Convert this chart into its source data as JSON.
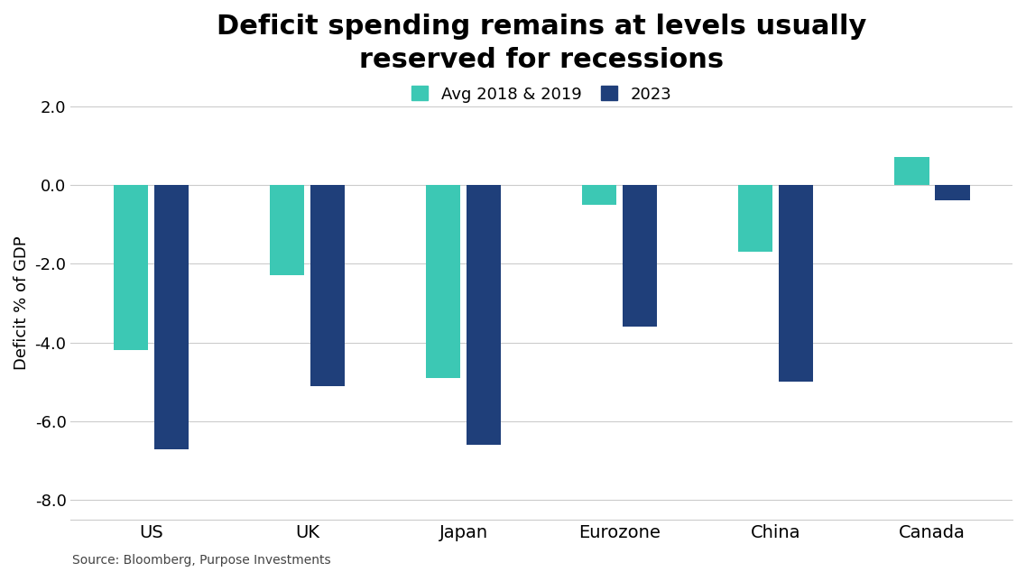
{
  "title": "Deficit spending remains at levels usually\nreserved for recessions",
  "categories": [
    "US",
    "UK",
    "Japan",
    "Eurozone",
    "China",
    "Canada"
  ],
  "avg_2018_2019": [
    -4.2,
    -2.3,
    -4.9,
    -0.5,
    -1.7,
    0.7
  ],
  "year_2023": [
    -6.7,
    -5.1,
    -6.6,
    -3.6,
    -5.0,
    -0.4
  ],
  "color_avg": "#3CC8B4",
  "color_2023": "#1F3F7A",
  "ylabel": "Deficit % of GDP",
  "ylim": [
    -8.5,
    2.5
  ],
  "yticks": [
    2.0,
    0.0,
    -2.0,
    -4.0,
    -6.0,
    -8.0
  ],
  "ytick_labels": [
    "2.0",
    "0.0",
    "-2.0",
    "-4.0",
    "-6.0",
    "-8.0"
  ],
  "legend_labels": [
    "Avg 2018 & 2019",
    "2023"
  ],
  "source_text": "Source: Bloomberg, Purpose Investments",
  "bar_width": 0.22,
  "background_color": "#FFFFFF",
  "grid_color": "#CCCCCC",
  "title_fontsize": 22,
  "axis_fontsize": 13,
  "tick_fontsize": 13,
  "legend_fontsize": 13
}
